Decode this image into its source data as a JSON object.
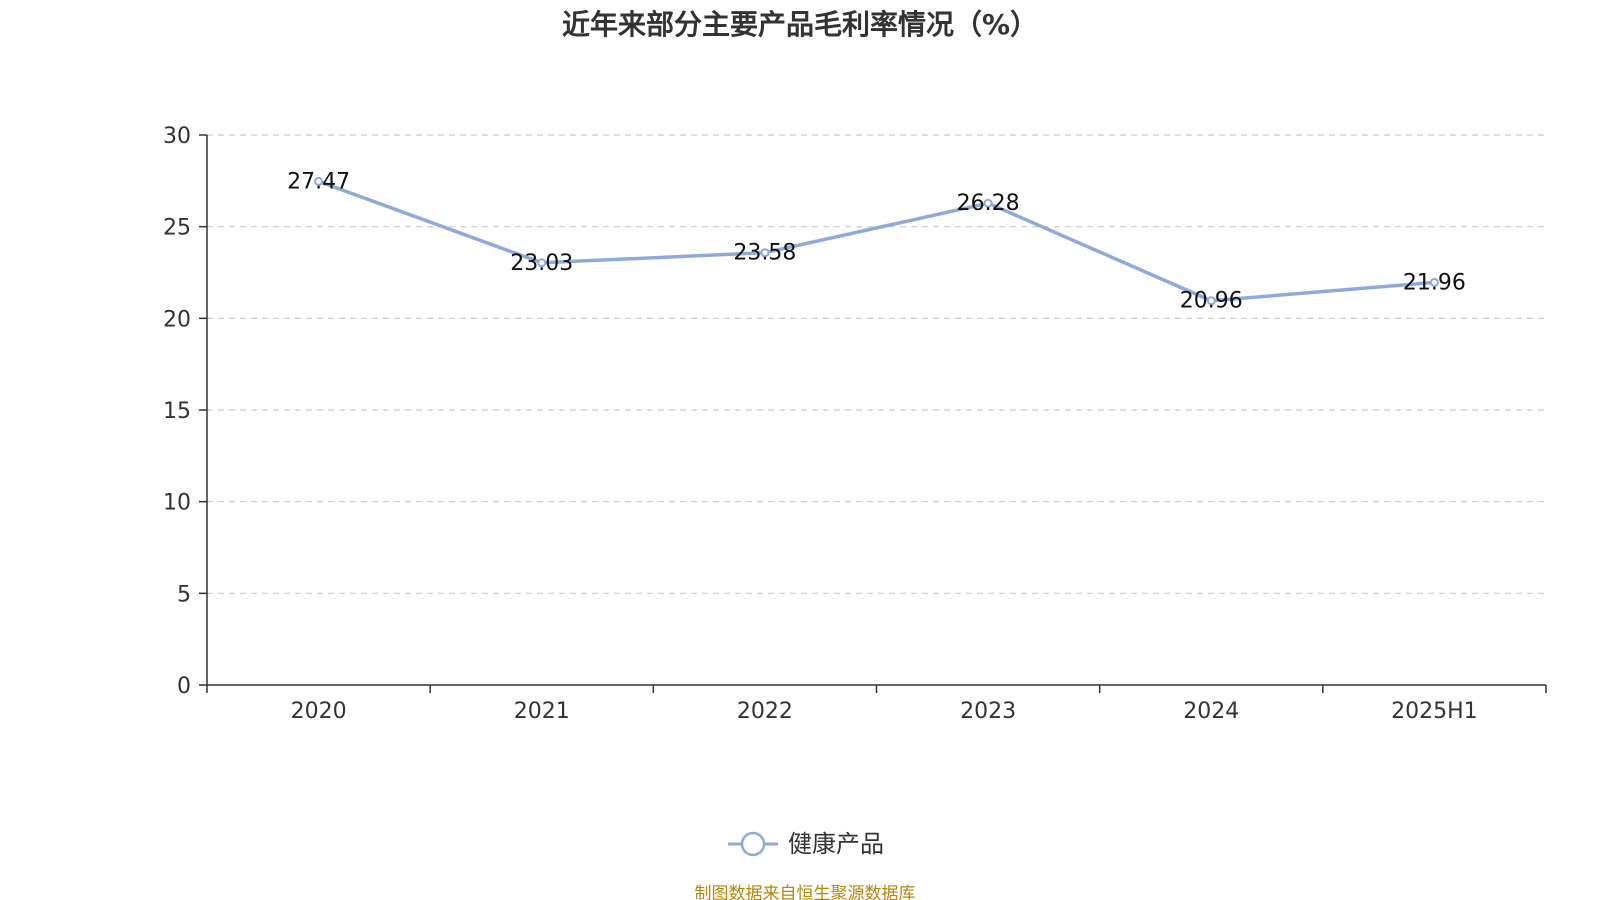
{
  "chart_data": {
    "type": "line",
    "title": "近年来部分主要产品毛利率情况（%）",
    "categories": [
      "2020",
      "2021",
      "2022",
      "2023",
      "2024",
      "2025H1"
    ],
    "series": [
      {
        "name": "健康产品",
        "values": [
          27.47,
          23.03,
          23.58,
          26.28,
          20.96,
          21.96
        ],
        "color": "#8eaadb"
      }
    ],
    "data_labels": [
      "27.47",
      "23.03",
      "23.58",
      "26.28",
      "20.96",
      "21.96"
    ],
    "ylim": [
      0,
      30
    ],
    "yticks": [
      "0",
      "5",
      "10",
      "15",
      "20",
      "25",
      "30"
    ],
    "grid": true,
    "legend_position": "bottom-center",
    "xlabel": "",
    "ylabel": ""
  },
  "footer": {
    "source": "制图数据来自恒生聚源数据库"
  }
}
